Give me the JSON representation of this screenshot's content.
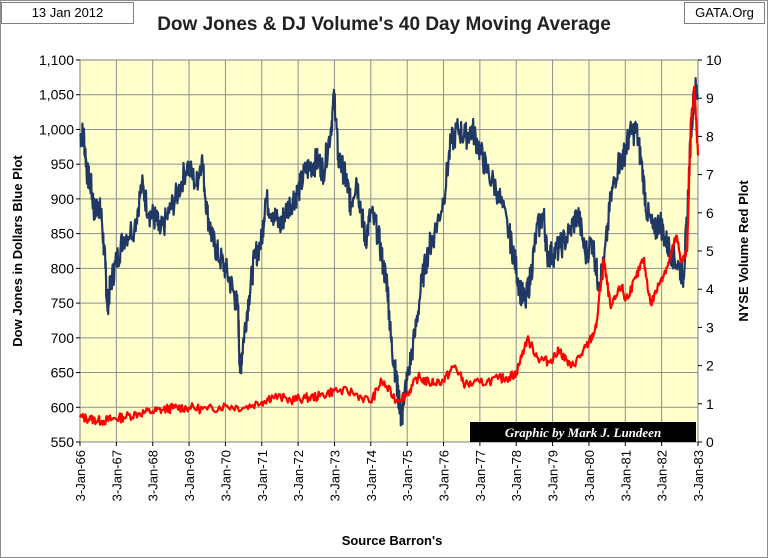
{
  "header": {
    "date": "13 Jan 2012",
    "source": "GATA.Org"
  },
  "chart_data": {
    "type": "line",
    "title": "Dow Jones & DJ Volume's 40 Day Moving Average",
    "xlabel": "Source Barron's",
    "ylabel": "Dow Jones in Dollars Blue Plot",
    "y2label": "NYSE Volume Red Plot",
    "credit": "Graphic by Mark J. Lundeen",
    "ylim": [
      550,
      1100
    ],
    "y2lim": [
      0,
      10
    ],
    "xlim": [
      1966,
      1983
    ],
    "grid": true,
    "y_ticks": [
      "550",
      "600",
      "650",
      "700",
      "750",
      "800",
      "850",
      "900",
      "950",
      "1,000",
      "1,050",
      "1,100"
    ],
    "y2_ticks": [
      "0",
      "1",
      "2",
      "3",
      "4",
      "5",
      "6",
      "7",
      "8",
      "9",
      "10"
    ],
    "x_ticks": [
      "3-Jan-66",
      "3-Jan-67",
      "3-Jan-68",
      "3-Jan-69",
      "3-Jan-70",
      "3-Jan-71",
      "3-Jan-72",
      "3-Jan-73",
      "3-Jan-74",
      "3-Jan-75",
      "3-Jan-76",
      "3-Jan-77",
      "3-Jan-78",
      "3-Jan-79",
      "3-Jan-80",
      "3-Jan-81",
      "3-Jan-82",
      "3-Jan-83"
    ],
    "colors": {
      "plot_bg": "#ffffcc",
      "dow": "#1f3864",
      "volume": "#ff0000",
      "grid": "#8e8e8e"
    },
    "series": [
      {
        "name": "Dow Jones",
        "axis": "left",
        "x": [
          1966.0,
          1966.1,
          1966.2,
          1966.3,
          1966.4,
          1966.5,
          1966.6,
          1966.7,
          1966.75,
          1966.85,
          1967.0,
          1967.2,
          1967.5,
          1967.7,
          1967.9,
          1968.1,
          1968.2,
          1968.45,
          1968.7,
          1968.95,
          1969.2,
          1969.35,
          1969.5,
          1969.65,
          1969.8,
          1970.0,
          1970.2,
          1970.35,
          1970.4,
          1970.5,
          1970.65,
          1970.8,
          1971.0,
          1971.1,
          1971.3,
          1971.5,
          1971.65,
          1971.85,
          1972.0,
          1972.2,
          1972.4,
          1972.55,
          1972.7,
          1972.9,
          1973.0,
          1973.1,
          1973.25,
          1973.35,
          1973.45,
          1973.6,
          1973.75,
          1973.85,
          1974.0,
          1974.2,
          1974.35,
          1974.45,
          1974.55,
          1974.65,
          1974.75,
          1974.8,
          1974.85,
          1974.9,
          1975.0,
          1975.2,
          1975.4,
          1975.6,
          1975.75,
          1976.0,
          1976.2,
          1976.4,
          1976.6,
          1976.8,
          1977.0,
          1977.2,
          1977.5,
          1977.8,
          1977.95,
          1978.1,
          1978.25,
          1978.4,
          1978.55,
          1978.75,
          1978.85,
          1979.0,
          1979.2,
          1979.45,
          1979.7,
          1979.9,
          1980.1,
          1980.25,
          1980.4,
          1980.6,
          1980.8,
          1980.95,
          1981.1,
          1981.3,
          1981.45,
          1981.6,
          1981.8,
          1981.95,
          1982.1,
          1982.3,
          1982.5,
          1982.6,
          1982.7,
          1982.8,
          1982.9,
          1983.0
        ],
        "values": [
          990,
          995,
          935,
          920,
          880,
          895,
          870,
          800,
          745,
          780,
          810,
          845,
          860,
          920,
          880,
          870,
          850,
          880,
          910,
          950,
          920,
          960,
          880,
          840,
          820,
          800,
          770,
          740,
          650,
          700,
          760,
          815,
          840,
          900,
          880,
          860,
          880,
          900,
          910,
          940,
          950,
          955,
          940,
          1000,
          1050,
          960,
          940,
          920,
          890,
          930,
          880,
          840,
          880,
          850,
          800,
          780,
          700,
          660,
          620,
          600,
          580,
          615,
          640,
          700,
          780,
          830,
          850,
          900,
          980,
          1000,
          990,
          1000,
          970,
          940,
          910,
          850,
          815,
          770,
          750,
          790,
          850,
          880,
          820,
          820,
          830,
          850,
          880,
          820,
          840,
          780,
          800,
          900,
          950,
          960,
          990,
          1000,
          950,
          880,
          850,
          870,
          840,
          820,
          800,
          790,
          870,
          990,
          1060,
          1050
        ]
      },
      {
        "name": "NYSE Volume",
        "axis": "right",
        "x": [
          1966.0,
          1966.3,
          1966.6,
          1966.9,
          1967.2,
          1967.6,
          1968.0,
          1968.3,
          1968.6,
          1969.0,
          1969.5,
          1970.0,
          1970.5,
          1971.0,
          1971.3,
          1971.8,
          1972.2,
          1972.6,
          1973.0,
          1973.5,
          1974.0,
          1974.3,
          1974.7,
          1975.0,
          1975.3,
          1975.6,
          1976.0,
          1976.3,
          1976.6,
          1977.0,
          1977.5,
          1977.8,
          1978.0,
          1978.3,
          1978.6,
          1978.9,
          1979.2,
          1979.5,
          1979.8,
          1980.0,
          1980.2,
          1980.4,
          1980.6,
          1980.9,
          1981.0,
          1981.3,
          1981.5,
          1981.7,
          1982.0,
          1982.2,
          1982.4,
          1982.55,
          1982.7,
          1982.8,
          1982.9,
          1983.0
        ],
        "values": [
          0.65,
          0.6,
          0.55,
          0.6,
          0.65,
          0.75,
          0.8,
          0.85,
          0.9,
          0.9,
          0.85,
          0.95,
          0.9,
          1.05,
          1.2,
          1.1,
          1.15,
          1.2,
          1.35,
          1.3,
          1.05,
          1.6,
          1.1,
          1.25,
          1.7,
          1.55,
          1.6,
          2.0,
          1.5,
          1.55,
          1.65,
          1.7,
          1.8,
          2.7,
          2.2,
          2.1,
          2.4,
          1.95,
          2.3,
          2.6,
          3.0,
          4.8,
          3.5,
          4.1,
          3.7,
          4.3,
          4.8,
          3.6,
          4.3,
          4.7,
          5.4,
          4.7,
          5.0,
          8.3,
          9.3,
          7.5
        ]
      }
    ]
  }
}
